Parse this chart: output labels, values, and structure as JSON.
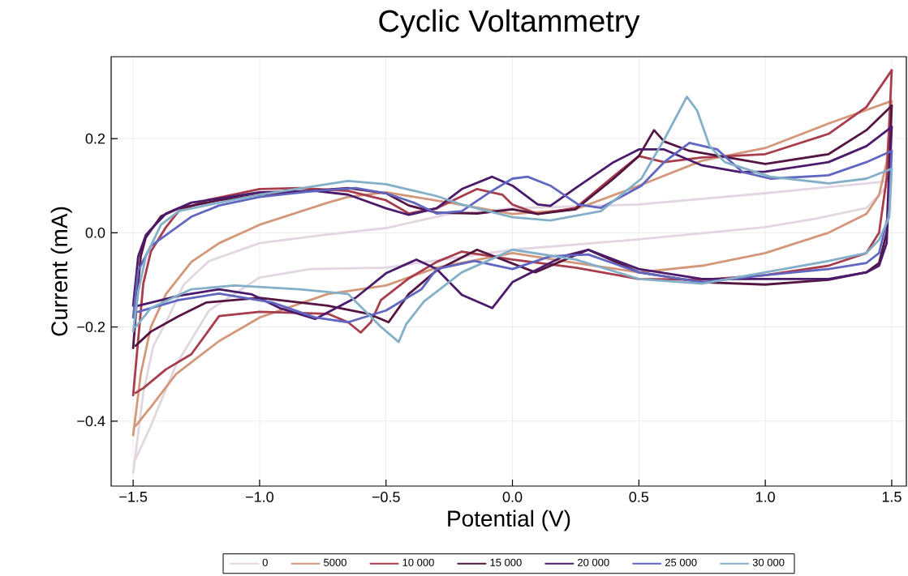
{
  "chart_data": {
    "type": "line",
    "title": "Cyclic Voltammetry",
    "xlabel": "Potential (V)",
    "ylabel": "Current (mA)",
    "xlim": [
      -1.587,
      1.558
    ],
    "ylim": [
      -0.538,
      0.374
    ],
    "xticks": [
      {
        "value": -1.5,
        "label": "−1.5"
      },
      {
        "value": -1.0,
        "label": "−1.0"
      },
      {
        "value": -0.5,
        "label": "−0.5"
      },
      {
        "value": 0.0,
        "label": "0.0"
      },
      {
        "value": 0.5,
        "label": "0.5"
      },
      {
        "value": 1.0,
        "label": "1.0"
      },
      {
        "value": 1.5,
        "label": "1.5"
      }
    ],
    "yticks": [
      {
        "value": -0.4,
        "label": "−0.4"
      },
      {
        "value": -0.2,
        "label": "−0.2"
      },
      {
        "value": 0.0,
        "label": "0.0"
      },
      {
        "value": 0.2,
        "label": "0.2"
      }
    ],
    "grid": true,
    "legend": "bottom",
    "line_style": "solid",
    "series": [
      {
        "name": "0",
        "color": "#e2d6e2",
        "x": [
          -1.5,
          -1.46,
          -1.42,
          -1.37,
          -1.3,
          -1.2,
          -1.0,
          -0.75,
          -0.5,
          -0.25,
          0.0,
          0.5,
          1.0,
          1.4,
          1.5
        ],
        "values": [
          -0.51,
          -0.34,
          -0.24,
          -0.19,
          -0.11,
          -0.06,
          -0.022,
          -0.005,
          0.01,
          0.04,
          0.052,
          0.06,
          0.084,
          0.105,
          0.11
        ]
      },
      {
        "color": "#e2d6e2",
        "x": [
          1.5,
          1.45,
          1.4,
          1.2,
          1.0,
          0.5,
          0.0,
          -0.5,
          -0.8,
          -1.0,
          -1.2,
          -1.33,
          -1.43,
          -1.49
        ],
        "values": [
          0.11,
          0.08,
          0.053,
          0.03,
          0.012,
          -0.014,
          -0.036,
          -0.074,
          -0.077,
          -0.095,
          -0.165,
          -0.28,
          -0.41,
          -0.48
        ]
      },
      {
        "name": "5000",
        "color": "#d3977a",
        "x": [
          -1.5,
          -1.47,
          -1.43,
          -1.37,
          -1.27,
          -1.16,
          -1.0,
          -0.73,
          -0.65,
          -0.5,
          -0.25,
          0.0,
          0.25,
          0.5,
          0.75,
          1.0,
          1.25,
          1.5
        ],
        "values": [
          -0.43,
          -0.3,
          -0.2,
          -0.13,
          -0.062,
          -0.022,
          0.017,
          0.064,
          0.076,
          0.086,
          0.064,
          0.04,
          0.05,
          0.1,
          0.153,
          0.18,
          0.232,
          0.28
        ]
      },
      {
        "color": "#d3977a",
        "x": [
          1.5,
          1.48,
          1.45,
          1.4,
          1.25,
          1.0,
          0.75,
          0.5,
          0.25,
          0.0,
          -0.3,
          -0.5,
          -0.73,
          -1.0,
          -1.16,
          -1.33,
          -1.43,
          -1.49
        ],
        "values": [
          0.28,
          0.15,
          0.08,
          0.04,
          0.0,
          -0.043,
          -0.07,
          -0.084,
          -0.064,
          -0.043,
          -0.074,
          -0.112,
          -0.13,
          -0.18,
          -0.23,
          -0.3,
          -0.37,
          -0.41
        ]
      },
      {
        "name": "10 000",
        "color": "#a83d4d",
        "x": [
          -1.5,
          -1.46,
          -1.43,
          -1.37,
          -1.32,
          -1.21,
          -1.0,
          -0.84,
          -0.65,
          -0.5,
          -0.41,
          -0.3,
          -0.14,
          -0.04,
          0.0,
          0.1,
          0.25,
          0.4,
          0.5,
          0.6,
          0.75,
          1.0,
          1.25,
          1.4,
          1.5
        ],
        "values": [
          -0.345,
          -0.108,
          -0.04,
          0.012,
          0.046,
          0.069,
          0.093,
          0.095,
          0.089,
          0.069,
          0.041,
          0.052,
          0.093,
          0.081,
          0.06,
          0.04,
          0.053,
          0.12,
          0.163,
          0.15,
          0.16,
          0.167,
          0.21,
          0.267,
          0.345
        ]
      },
      {
        "color": "#a83d4d",
        "x": [
          1.5,
          1.48,
          1.45,
          1.4,
          1.25,
          1.0,
          0.75,
          0.5,
          0.25,
          0.0,
          -0.2,
          -0.3,
          -0.41,
          -0.52,
          -0.56,
          -0.6,
          -0.65,
          -0.73,
          -1.0,
          -1.16,
          -1.27,
          -1.37,
          -1.46,
          -1.49
        ],
        "values": [
          0.345,
          0.115,
          0.0,
          -0.043,
          -0.07,
          -0.09,
          -0.1,
          -0.098,
          -0.074,
          -0.057,
          -0.04,
          -0.062,
          -0.097,
          -0.143,
          -0.19,
          -0.212,
          -0.19,
          -0.172,
          -0.168,
          -0.177,
          -0.258,
          -0.29,
          -0.33,
          -0.34
        ]
      },
      {
        "name": "15 000",
        "color": "#541541",
        "x": [
          -1.5,
          -1.48,
          -1.47,
          -1.45,
          -1.39,
          -1.32,
          -1.16,
          -1.0,
          -0.65,
          -0.5,
          -0.41,
          -0.3,
          -0.14,
          0.0,
          0.1,
          0.25,
          0.4,
          0.5,
          0.56,
          0.6,
          0.7,
          1.0,
          1.25,
          1.4,
          1.5
        ],
        "values": [
          -0.245,
          -0.108,
          -0.05,
          -0.01,
          0.035,
          0.052,
          0.069,
          0.081,
          0.095,
          0.084,
          0.058,
          0.043,
          0.041,
          0.05,
          0.04,
          0.05,
          0.115,
          0.163,
          0.218,
          0.194,
          0.174,
          0.146,
          0.167,
          0.218,
          0.27
        ]
      },
      {
        "color": "#541541",
        "x": [
          1.5,
          1.48,
          1.45,
          1.4,
          1.25,
          1.0,
          0.75,
          0.5,
          0.3,
          0.09,
          -0.14,
          -0.3,
          -0.41,
          -0.49,
          -0.57,
          -0.73,
          -1.0,
          -1.21,
          -1.32,
          -1.43,
          -1.49
        ],
        "values": [
          0.27,
          0.0,
          -0.064,
          -0.084,
          -0.1,
          -0.11,
          -0.105,
          -0.084,
          -0.036,
          -0.084,
          -0.036,
          -0.08,
          -0.13,
          -0.19,
          -0.172,
          -0.155,
          -0.138,
          -0.148,
          -0.177,
          -0.21,
          -0.24
        ]
      },
      {
        "name": "20 000",
        "color": "#4b1a6b",
        "x": [
          -1.5,
          -1.48,
          -1.45,
          -1.43,
          -1.37,
          -1.27,
          -1.0,
          -0.78,
          -0.65,
          -0.5,
          -0.41,
          -0.3,
          -0.2,
          -0.08,
          0.0,
          0.1,
          0.15,
          0.25,
          0.4,
          0.5,
          0.6,
          0.75,
          0.9,
          1.0,
          1.25,
          1.4,
          1.5
        ],
        "values": [
          -0.155,
          -0.05,
          -0.005,
          0.007,
          0.041,
          0.064,
          0.086,
          0.089,
          0.081,
          0.052,
          0.038,
          0.052,
          0.093,
          0.119,
          0.1,
          0.06,
          0.057,
          0.095,
          0.15,
          0.177,
          0.177,
          0.143,
          0.129,
          0.13,
          0.15,
          0.184,
          0.225
        ]
      },
      {
        "color": "#4b1a6b",
        "x": [
          1.5,
          1.48,
          1.45,
          1.4,
          1.25,
          1.0,
          0.75,
          0.5,
          0.3,
          0.2,
          0.0,
          -0.08,
          -0.2,
          -0.3,
          -0.38,
          -0.5,
          -0.62,
          -0.78,
          -0.92,
          -1.03,
          -1.16,
          -1.32,
          -1.48
        ],
        "values": [
          0.225,
          -0.022,
          -0.07,
          -0.084,
          -0.098,
          -0.098,
          -0.098,
          -0.077,
          -0.036,
          -0.05,
          -0.105,
          -0.16,
          -0.132,
          -0.077,
          -0.057,
          -0.086,
          -0.138,
          -0.183,
          -0.16,
          -0.131,
          -0.12,
          -0.134,
          -0.155
        ]
      },
      {
        "name": "25 000",
        "color": "#6166c1",
        "x": [
          -1.5,
          -1.48,
          -1.43,
          -1.37,
          -1.27,
          -1.16,
          -1.0,
          -0.78,
          -0.62,
          -0.5,
          -0.39,
          -0.3,
          -0.2,
          -0.09,
          0.0,
          0.06,
          0.15,
          0.26,
          0.35,
          0.51,
          0.6,
          0.7,
          0.81,
          0.91,
          1.02,
          1.25,
          1.4,
          1.5
        ],
        "values": [
          -0.18,
          -0.08,
          -0.028,
          -0.005,
          0.034,
          0.058,
          0.076,
          0.089,
          0.095,
          0.084,
          0.064,
          0.041,
          0.046,
          0.086,
          0.115,
          0.119,
          0.1,
          0.06,
          0.053,
          0.1,
          0.15,
          0.191,
          0.177,
          0.129,
          0.115,
          0.122,
          0.15,
          0.174
        ]
      },
      {
        "color": "#6166c1",
        "x": [
          1.5,
          1.49,
          1.45,
          1.4,
          1.25,
          1.0,
          0.75,
          0.5,
          0.3,
          0.15,
          0.0,
          -0.15,
          -0.3,
          -0.36,
          -0.5,
          -0.65,
          -0.78,
          -0.95,
          -1.16,
          -1.32,
          -1.48
        ],
        "values": [
          0.174,
          0.046,
          -0.043,
          -0.064,
          -0.077,
          -0.09,
          -0.105,
          -0.084,
          -0.046,
          -0.05,
          -0.077,
          -0.06,
          -0.077,
          -0.12,
          -0.165,
          -0.19,
          -0.18,
          -0.148,
          -0.129,
          -0.143,
          -0.168
        ]
      },
      {
        "name": "30 000",
        "color": "#84afc8",
        "x": [
          -1.5,
          -1.48,
          -1.45,
          -1.39,
          -1.32,
          -1.16,
          -1.0,
          -0.65,
          -0.5,
          -0.3,
          -0.2,
          0.0,
          0.15,
          0.35,
          0.51,
          0.6,
          0.69,
          0.73,
          0.78,
          0.84,
          1.02,
          1.25,
          1.4,
          1.5
        ],
        "values": [
          -0.21,
          -0.125,
          -0.05,
          0.017,
          0.046,
          0.064,
          0.081,
          0.11,
          0.103,
          0.078,
          0.06,
          0.033,
          0.026,
          0.046,
          0.115,
          0.198,
          0.289,
          0.26,
          0.184,
          0.15,
          0.119,
          0.105,
          0.115,
          0.136
        ]
      },
      {
        "color": "#84afc8",
        "x": [
          1.5,
          1.49,
          1.45,
          1.4,
          1.25,
          1.0,
          0.75,
          0.5,
          0.25,
          0.0,
          -0.2,
          -0.35,
          -0.42,
          -0.45,
          -0.52,
          -0.65,
          -0.84,
          -1.1,
          -1.27,
          -1.43,
          -1.49
        ],
        "values": [
          0.136,
          0.033,
          -0.015,
          -0.043,
          -0.06,
          -0.084,
          -0.108,
          -0.098,
          -0.057,
          -0.036,
          -0.084,
          -0.146,
          -0.194,
          -0.232,
          -0.2,
          -0.13,
          -0.12,
          -0.112,
          -0.12,
          -0.16,
          -0.2
        ]
      }
    ]
  }
}
